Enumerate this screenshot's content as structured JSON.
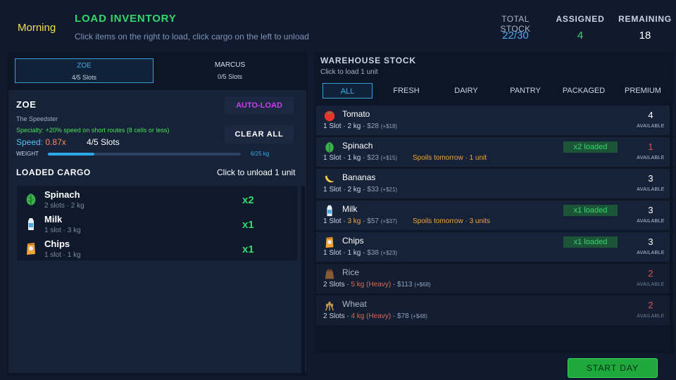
{
  "header": {
    "time_of_day": "Morning",
    "title": "LOAD INVENTORY",
    "subtitle": "Click items on the right to load, click cargo on the left to unload",
    "stats": {
      "total_stock_label": "TOTAL STOCK",
      "total_stock_value": "22/30",
      "assigned_label": "ASSIGNED",
      "assigned_value": "4",
      "remaining_label": "REMAINING",
      "remaining_value": "18"
    }
  },
  "drivers": [
    {
      "name": "ZOE",
      "slots": "4/5 Slots",
      "selected": true
    },
    {
      "name": "MARCUS",
      "slots": "0/5 Slots",
      "selected": false
    }
  ],
  "driver_card": {
    "name": "ZOE",
    "role": "The Speedster",
    "specialty": "Specialty: +20% speed on short routes (8 cells or less)",
    "speed_label": "Speed:",
    "speed_value": "0.87x",
    "slots": "4/5 Slots",
    "weight_label": "WEIGHT",
    "weight_value": "6/25 kg",
    "weight_fraction": 0.24,
    "auto_load_label": "AUTO-LOAD",
    "clear_all_label": "CLEAR ALL",
    "cargo_heading": "LOADED CARGO",
    "cargo_hint": "Click to unload 1 unit",
    "cargo": [
      {
        "name": "Spinach",
        "meta": "2 slots · 2 kg",
        "qty": "x2",
        "icon": "spinach-icon"
      },
      {
        "name": "Milk",
        "meta": "1 slot · 3 kg",
        "qty": "x1",
        "icon": "milk-icon"
      },
      {
        "name": "Chips",
        "meta": "1 slot · 1 kg",
        "qty": "x1",
        "icon": "chips-icon"
      }
    ]
  },
  "warehouse": {
    "title": "WAREHOUSE STOCK",
    "hint": "Click to load 1 unit",
    "filters": [
      "ALL",
      "FRESH",
      "DAIRY",
      "PANTRY",
      "PACKAGED",
      "PREMIUM"
    ],
    "active_filter": "ALL",
    "available_label": "AVAILABLE",
    "items": [
      {
        "name": "Tomato",
        "slots": "1 Slot",
        "weight": "2 kg",
        "price": "$28",
        "profit": "(+$18)",
        "spoil": "",
        "loaded": "",
        "available": "4",
        "icon": "tomato-icon"
      },
      {
        "name": "Spinach",
        "slots": "1 Slot",
        "weight": "1 kg",
        "price": "$23",
        "profit": "(+$15)",
        "spoil": "Spoils tomorrow · 1 unit",
        "loaded": "x2 loaded",
        "available": "1",
        "icon": "spinach-icon"
      },
      {
        "name": "Bananas",
        "slots": "1 Slot",
        "weight": "2 kg",
        "price": "$33",
        "profit": "(+$21)",
        "spoil": "",
        "loaded": "",
        "available": "3",
        "icon": "banana-icon"
      },
      {
        "name": "Milk",
        "slots": "1 Slot",
        "weight": "3 kg",
        "price": "$57",
        "profit": "(+$37)",
        "spoil": "Spoils tomorrow · 3 units",
        "loaded": "x1 loaded",
        "available": "3",
        "icon": "milk-icon"
      },
      {
        "name": "Chips",
        "slots": "1 Slot",
        "weight": "1 kg",
        "price": "$38",
        "profit": "(+$23)",
        "spoil": "",
        "loaded": "x1 loaded",
        "available": "3",
        "icon": "chips-icon"
      },
      {
        "name": "Rice",
        "slots": "2 Slots",
        "weight": "5 kg (Heavy)",
        "price": "$113",
        "profit": "(+$68)",
        "spoil": "",
        "loaded": "",
        "available": "2",
        "icon": "rice-sack-icon"
      },
      {
        "name": "Wheat",
        "slots": "2 Slots",
        "weight": "4 kg (Heavy)",
        "price": "$78",
        "profit": "(+$48)",
        "spoil": "",
        "loaded": "",
        "available": "2",
        "icon": "wheat-icon"
      }
    ]
  },
  "start_day_label": "START DAY"
}
